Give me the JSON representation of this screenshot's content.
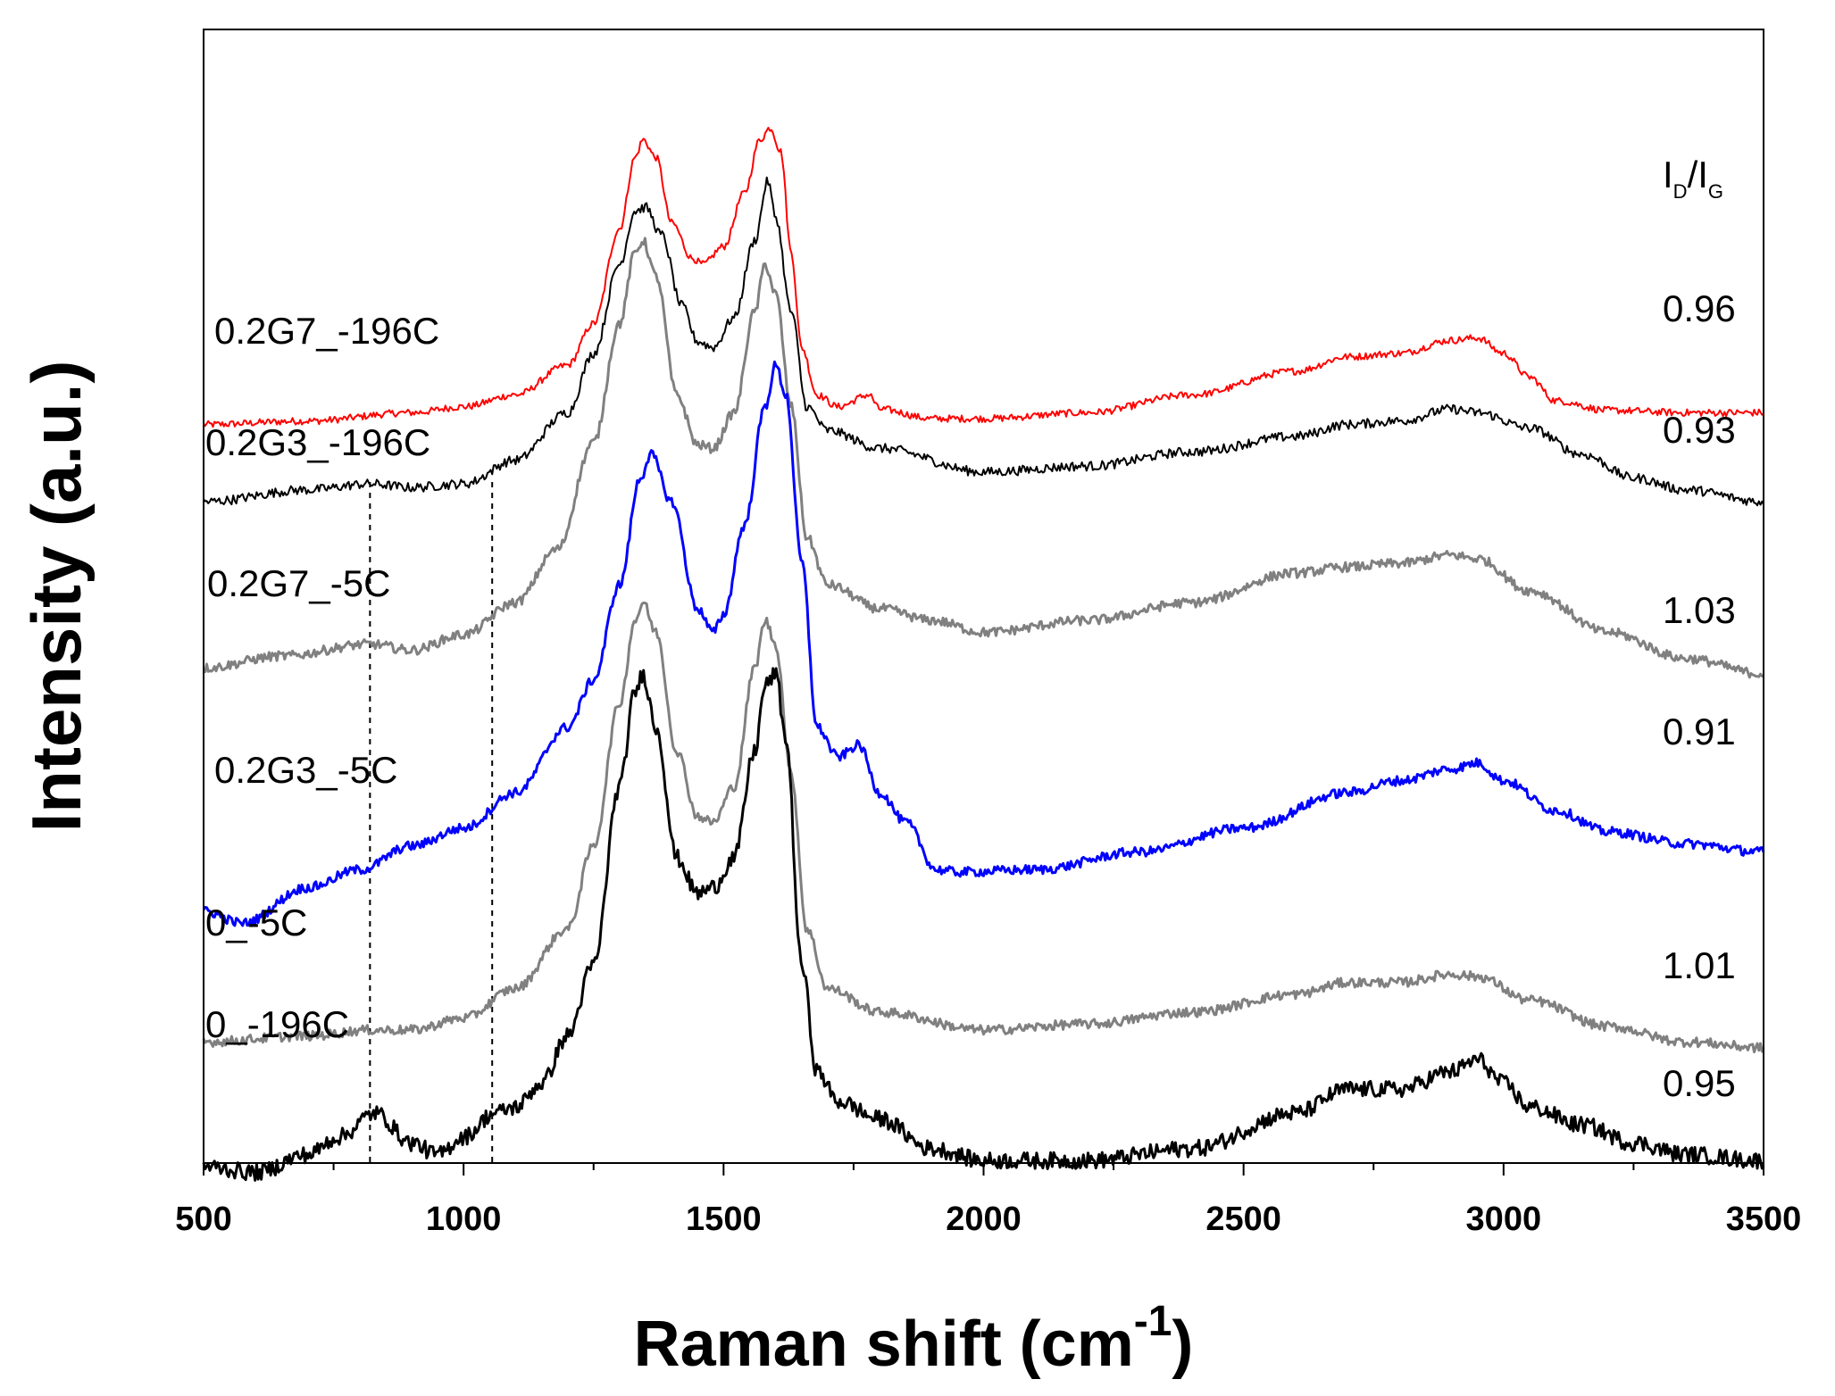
{
  "chart_data": {
    "type": "line",
    "title": "",
    "xlabel": "Raman shift (cm",
    "xlabel_superscript": "-1",
    "xlabel_close": ")",
    "ylabel": "Intensity (a.u.)",
    "xlim": [
      500,
      3500
    ],
    "ylim": [
      0,
      10
    ],
    "x_ticks": [
      500,
      1000,
      1500,
      2000,
      2500,
      3000,
      3500
    ],
    "x_tick_labels": [
      "500",
      "1000",
      "1500",
      "2000",
      "2500",
      "3000",
      "3500"
    ],
    "x_minor_tick_step": 250,
    "reference_lines_x": [
      820,
      1055
    ],
    "ratio_header": {
      "main": "I",
      "sub1": "D",
      "slash": "/I",
      "sub2": "G"
    },
    "series": [
      {
        "name": "0.2G7_-196C",
        "color": "#ff0000",
        "ratio": "0.96",
        "noise": 0.03,
        "thick": false,
        "points": [
          [
            500,
            6.95
          ],
          [
            700,
            6.98
          ],
          [
            900,
            7.05
          ],
          [
            1000,
            7.1
          ],
          [
            1100,
            7.2
          ],
          [
            1200,
            7.45
          ],
          [
            1250,
            7.8
          ],
          [
            1300,
            8.6
          ],
          [
            1330,
            9.2
          ],
          [
            1345,
            9.35
          ],
          [
            1370,
            9.2
          ],
          [
            1400,
            8.65
          ],
          [
            1440,
            8.35
          ],
          [
            1460,
            8.3
          ],
          [
            1500,
            8.45
          ],
          [
            1540,
            8.9
          ],
          [
            1570,
            9.35
          ],
          [
            1590,
            9.45
          ],
          [
            1610,
            9.25
          ],
          [
            1630,
            8.4
          ],
          [
            1650,
            7.6
          ],
          [
            1680,
            7.2
          ],
          [
            1720,
            7.1
          ],
          [
            1780,
            7.2
          ],
          [
            1800,
            7.08
          ],
          [
            1900,
            7.0
          ],
          [
            2000,
            7.0
          ],
          [
            2200,
            7.05
          ],
          [
            2400,
            7.2
          ],
          [
            2600,
            7.4
          ],
          [
            2700,
            7.52
          ],
          [
            2800,
            7.55
          ],
          [
            2900,
            7.66
          ],
          [
            2950,
            7.68
          ],
          [
            3000,
            7.55
          ],
          [
            3050,
            7.35
          ],
          [
            3100,
            7.15
          ],
          [
            3200,
            7.07
          ],
          [
            3350,
            7.05
          ],
          [
            3500,
            7.05
          ]
        ]
      },
      {
        "name": "0.2G3_-196C",
        "color": "#000000",
        "ratio": "0.93",
        "noise": 0.04,
        "thick": false,
        "points": [
          [
            500,
            6.3
          ],
          [
            700,
            6.4
          ],
          [
            820,
            6.45
          ],
          [
            900,
            6.42
          ],
          [
            1000,
            6.45
          ],
          [
            1100,
            6.65
          ],
          [
            1200,
            7.05
          ],
          [
            1250,
            7.55
          ],
          [
            1300,
            8.3
          ],
          [
            1330,
            8.75
          ],
          [
            1350,
            8.78
          ],
          [
            1380,
            8.55
          ],
          [
            1420,
            7.95
          ],
          [
            1450,
            7.65
          ],
          [
            1480,
            7.6
          ],
          [
            1520,
            7.85
          ],
          [
            1560,
            8.5
          ],
          [
            1585,
            9.0
          ],
          [
            1600,
            8.7
          ],
          [
            1630,
            7.9
          ],
          [
            1660,
            7.1
          ],
          [
            1700,
            6.9
          ],
          [
            1800,
            6.75
          ],
          [
            2000,
            6.55
          ],
          [
            2200,
            6.6
          ],
          [
            2400,
            6.72
          ],
          [
            2600,
            6.85
          ],
          [
            2700,
            6.95
          ],
          [
            2800,
            6.98
          ],
          [
            2900,
            7.08
          ],
          [
            2950,
            7.05
          ],
          [
            3050,
            6.92
          ],
          [
            3150,
            6.7
          ],
          [
            3250,
            6.5
          ],
          [
            3350,
            6.4
          ],
          [
            3500,
            6.3
          ]
        ]
      },
      {
        "name": "0.2G7_-5C",
        "color": "#808080",
        "ratio": "1.03",
        "noise": 0.04,
        "thick": true,
        "points": [
          [
            500,
            4.9
          ],
          [
            650,
            5.0
          ],
          [
            820,
            5.1
          ],
          [
            900,
            5.05
          ],
          [
            1000,
            5.18
          ],
          [
            1100,
            5.45
          ],
          [
            1180,
            5.9
          ],
          [
            1250,
            6.8
          ],
          [
            1300,
            7.8
          ],
          [
            1330,
            8.4
          ],
          [
            1345,
            8.5
          ],
          [
            1370,
            8.2
          ],
          [
            1410,
            7.2
          ],
          [
            1450,
            6.78
          ],
          [
            1480,
            6.75
          ],
          [
            1520,
            7.05
          ],
          [
            1560,
            7.9
          ],
          [
            1580,
            8.3
          ],
          [
            1600,
            8.05
          ],
          [
            1630,
            7.1
          ],
          [
            1660,
            6.0
          ],
          [
            1700,
            5.6
          ],
          [
            1800,
            5.4
          ],
          [
            1900,
            5.3
          ],
          [
            2000,
            5.2
          ],
          [
            2200,
            5.3
          ],
          [
            2400,
            5.45
          ],
          [
            2600,
            5.7
          ],
          [
            2700,
            5.75
          ],
          [
            2800,
            5.78
          ],
          [
            2900,
            5.85
          ],
          [
            2950,
            5.82
          ],
          [
            3050,
            5.55
          ],
          [
            3200,
            5.2
          ],
          [
            3350,
            4.98
          ],
          [
            3500,
            4.85
          ]
        ]
      },
      {
        "name": "0.2G3_-5C",
        "color": "#0000ff",
        "ratio": "0.91",
        "noise": 0.04,
        "thick": true,
        "points": [
          [
            500,
            2.85
          ],
          [
            575,
            2.75
          ],
          [
            700,
            3.05
          ],
          [
            800,
            3.2
          ],
          [
            900,
            3.4
          ],
          [
            1000,
            3.55
          ],
          [
            1100,
            3.85
          ],
          [
            1200,
            4.4
          ],
          [
            1250,
            4.8
          ],
          [
            1300,
            5.6
          ],
          [
            1340,
            6.5
          ],
          [
            1360,
            6.7
          ],
          [
            1400,
            6.3
          ],
          [
            1450,
            5.4
          ],
          [
            1480,
            5.2
          ],
          [
            1500,
            5.35
          ],
          [
            1540,
            6.1
          ],
          [
            1580,
            7.1
          ],
          [
            1600,
            7.45
          ],
          [
            1620,
            7.2
          ],
          [
            1650,
            5.8
          ],
          [
            1680,
            4.4
          ],
          [
            1720,
            4.15
          ],
          [
            1760,
            4.25
          ],
          [
            1800,
            3.85
          ],
          [
            1850,
            3.6
          ],
          [
            1910,
            3.2
          ],
          [
            1950,
            3.18
          ],
          [
            2100,
            3.2
          ],
          [
            2300,
            3.35
          ],
          [
            2500,
            3.55
          ],
          [
            2700,
            3.85
          ],
          [
            2800,
            3.95
          ],
          [
            2900,
            4.05
          ],
          [
            2950,
            4.1
          ],
          [
            3000,
            3.95
          ],
          [
            3100,
            3.7
          ],
          [
            3200,
            3.52
          ],
          [
            3350,
            3.42
          ],
          [
            3500,
            3.35
          ]
        ]
      },
      {
        "name": "0_-5C",
        "color": "#808080",
        "ratio": "1.01",
        "noise": 0.04,
        "thick": true,
        "points": [
          [
            500,
            1.75
          ],
          [
            700,
            1.8
          ],
          [
            820,
            1.85
          ],
          [
            900,
            1.85
          ],
          [
            1000,
            1.95
          ],
          [
            1100,
            2.2
          ],
          [
            1200,
            2.7
          ],
          [
            1250,
            3.4
          ],
          [
            1300,
            4.6
          ],
          [
            1330,
            5.3
          ],
          [
            1345,
            5.45
          ],
          [
            1370,
            5.2
          ],
          [
            1410,
            4.2
          ],
          [
            1450,
            3.65
          ],
          [
            1480,
            3.6
          ],
          [
            1520,
            3.9
          ],
          [
            1560,
            4.9
          ],
          [
            1580,
            5.3
          ],
          [
            1600,
            5.1
          ],
          [
            1630,
            4.0
          ],
          [
            1660,
            2.7
          ],
          [
            1700,
            2.2
          ],
          [
            1800,
            2.0
          ],
          [
            2000,
            1.85
          ],
          [
            2200,
            1.9
          ],
          [
            2400,
            2.0
          ],
          [
            2600,
            2.15
          ],
          [
            2700,
            2.25
          ],
          [
            2800,
            2.25
          ],
          [
            2900,
            2.32
          ],
          [
            2950,
            2.3
          ],
          [
            3050,
            2.1
          ],
          [
            3200,
            1.88
          ],
          [
            3350,
            1.75
          ],
          [
            3500,
            1.7
          ]
        ]
      },
      {
        "name": "0_-196C",
        "color": "#000000",
        "ratio": "0.95",
        "noise": 0.07,
        "thick": true,
        "points": [
          [
            500,
            0.7
          ],
          [
            600,
            0.65
          ],
          [
            700,
            0.8
          ],
          [
            760,
            0.95
          ],
          [
            830,
            1.15
          ],
          [
            900,
            0.9
          ],
          [
            950,
            0.8
          ],
          [
            1000,
            0.95
          ],
          [
            1060,
            1.15
          ],
          [
            1100,
            1.2
          ],
          [
            1150,
            1.4
          ],
          [
            1200,
            1.8
          ],
          [
            1250,
            2.4
          ],
          [
            1300,
            3.9
          ],
          [
            1330,
            4.7
          ],
          [
            1345,
            4.85
          ],
          [
            1370,
            4.4
          ],
          [
            1410,
            3.3
          ],
          [
            1450,
            3.0
          ],
          [
            1480,
            3.05
          ],
          [
            1520,
            3.3
          ],
          [
            1560,
            4.2
          ],
          [
            1580,
            4.75
          ],
          [
            1600,
            4.85
          ],
          [
            1620,
            4.3
          ],
          [
            1650,
            2.4
          ],
          [
            1680,
            1.5
          ],
          [
            1720,
            1.25
          ],
          [
            1800,
            1.1
          ],
          [
            1900,
            0.85
          ],
          [
            2000,
            0.75
          ],
          [
            2200,
            0.75
          ],
          [
            2400,
            0.85
          ],
          [
            2600,
            1.15
          ],
          [
            2700,
            1.35
          ],
          [
            2800,
            1.35
          ],
          [
            2900,
            1.5
          ],
          [
            2950,
            1.6
          ],
          [
            3000,
            1.4
          ],
          [
            3050,
            1.2
          ],
          [
            3150,
            1.05
          ],
          [
            3250,
            0.9
          ],
          [
            3350,
            0.8
          ],
          [
            3500,
            0.75
          ]
        ]
      }
    ]
  }
}
